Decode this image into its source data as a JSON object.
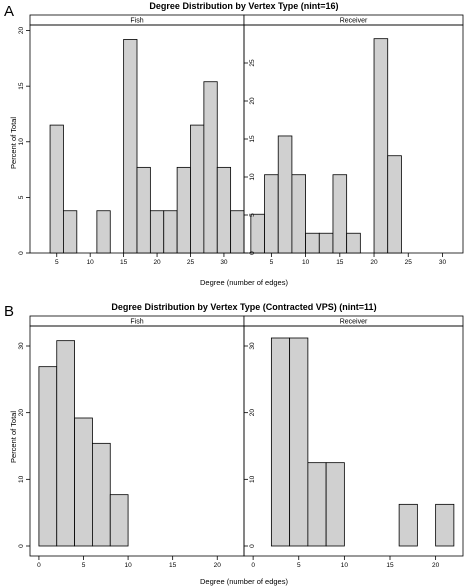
{
  "chart_data": [
    {
      "type": "bar",
      "panel_label": "A",
      "title": "Degree Distribution by Vertex Type (nint=16)",
      "xlabel": "Degree (number of edges)",
      "ylabel": "Percent of Total",
      "xlim": [
        0,
        33
      ],
      "x_ticks": [
        "5",
        "10",
        "15",
        "20",
        "25",
        "30"
      ],
      "x_tick_values": [
        5,
        10,
        15,
        20,
        25,
        30
      ],
      "facets": [
        {
          "strip": "Fish",
          "ylim": [
            0,
            20.5
          ],
          "y_ticks": [
            "0",
            "5",
            "10",
            "15",
            "20"
          ],
          "y_tick_values": [
            0,
            5,
            10,
            15,
            20
          ],
          "bins": [
            {
              "x0": 4,
              "x1": 6,
              "value": 11.5
            },
            {
              "x0": 6,
              "x1": 8,
              "value": 3.8
            },
            {
              "x0": 11,
              "x1": 13,
              "value": 3.8
            },
            {
              "x0": 15,
              "x1": 17,
              "value": 19.2
            },
            {
              "x0": 17,
              "x1": 19,
              "value": 7.7
            },
            {
              "x0": 19,
              "x1": 21,
              "value": 3.8
            },
            {
              "x0": 21,
              "x1": 23,
              "value": 3.8
            },
            {
              "x0": 23,
              "x1": 25,
              "value": 7.7
            },
            {
              "x0": 25,
              "x1": 27,
              "value": 11.5
            },
            {
              "x0": 27,
              "x1": 29,
              "value": 15.4
            },
            {
              "x0": 29,
              "x1": 31,
              "value": 7.7
            },
            {
              "x0": 31,
              "x1": 33,
              "value": 3.8
            }
          ]
        },
        {
          "strip": "Receiver",
          "ylim": [
            0,
            30
          ],
          "y_ticks": [
            "0",
            "5",
            "10",
            "15",
            "20",
            "25"
          ],
          "y_tick_values": [
            0,
            5,
            10,
            15,
            20,
            25
          ],
          "bins": [
            {
              "x0": 2,
              "x1": 4,
              "value": 5.1
            },
            {
              "x0": 4,
              "x1": 6,
              "value": 10.3
            },
            {
              "x0": 6,
              "x1": 8,
              "value": 15.4
            },
            {
              "x0": 8,
              "x1": 10,
              "value": 10.3
            },
            {
              "x0": 10,
              "x1": 12,
              "value": 2.6
            },
            {
              "x0": 12,
              "x1": 14,
              "value": 2.6
            },
            {
              "x0": 14,
              "x1": 16,
              "value": 10.3
            },
            {
              "x0": 16,
              "x1": 18,
              "value": 2.6
            },
            {
              "x0": 18,
              "x1": 20,
              "value": 0
            },
            {
              "x0": 20,
              "x1": 22,
              "value": 28.2
            },
            {
              "x0": 22,
              "x1": 24,
              "value": 12.8
            }
          ]
        }
      ]
    },
    {
      "type": "bar",
      "panel_label": "B",
      "title": "Degree Distribution by Vertex Type (Contracted VPS) (nint=11)",
      "xlabel": "Degree (number of edges)",
      "ylabel": "Percent of Total",
      "xlim": [
        -1,
        23
      ],
      "x_ticks": [
        "0",
        "5",
        "10",
        "15",
        "20"
      ],
      "x_tick_values": [
        0,
        5,
        10,
        15,
        20
      ],
      "facets": [
        {
          "strip": "Fish",
          "ylim": [
            0,
            33
          ],
          "y_ticks": [
            "0",
            "10",
            "20",
            "30"
          ],
          "y_tick_values": [
            0,
            10,
            20,
            30
          ],
          "bins": [
            {
              "x0": 0,
              "x1": 2,
              "value": 26.9
            },
            {
              "x0": 2,
              "x1": 4,
              "value": 30.8
            },
            {
              "x0": 4,
              "x1": 6,
              "value": 19.2
            },
            {
              "x0": 6,
              "x1": 8,
              "value": 15.4
            },
            {
              "x0": 8,
              "x1": 10,
              "value": 7.7
            }
          ]
        },
        {
          "strip": "Receiver",
          "ylim": [
            0,
            33
          ],
          "y_ticks": [
            "0",
            "10",
            "20",
            "30"
          ],
          "y_tick_values": [
            0,
            10,
            20,
            30
          ],
          "bins": [
            {
              "x0": 2,
              "x1": 4,
              "value": 31.2
            },
            {
              "x0": 4,
              "x1": 6,
              "value": 31.2
            },
            {
              "x0": 6,
              "x1": 8,
              "value": 12.5
            },
            {
              "x0": 8,
              "x1": 10,
              "value": 12.5
            },
            {
              "x0": 16,
              "x1": 18,
              "value": 6.25
            },
            {
              "x0": 20,
              "x1": 22,
              "value": 6.25
            }
          ]
        }
      ]
    }
  ]
}
